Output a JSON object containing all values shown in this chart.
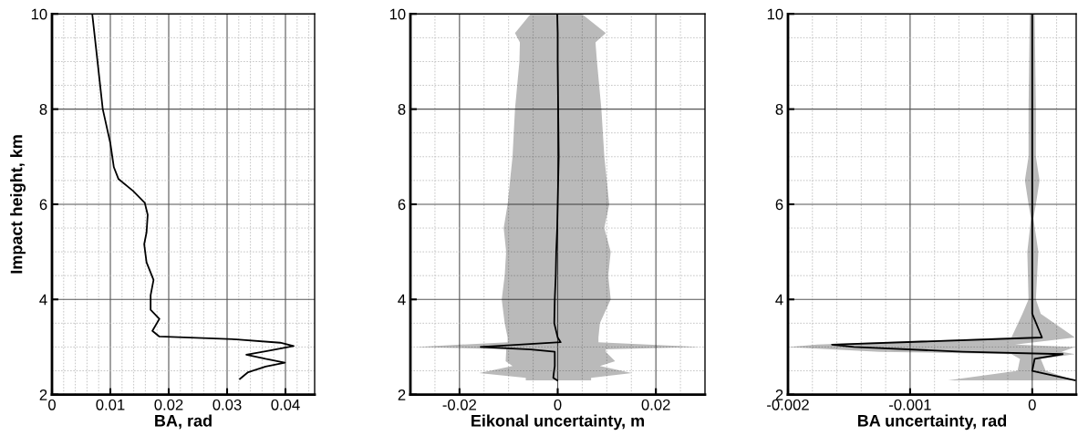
{
  "chart_data": [
    {
      "type": "line",
      "orientation": "horizontal",
      "xlabel": "BA, rad",
      "ylabel": "Impact height, km",
      "grid": true,
      "xlim": [
        0,
        0.045
      ],
      "ylim": [
        2,
        10
      ],
      "xticks": [
        0,
        {
          "value": 0.002,
          "label": null
        },
        {
          "value": 0.004,
          "label": null
        },
        {
          "value": 0.006,
          "label": null
        },
        {
          "value": 0.008,
          "label": null
        },
        0.01,
        {
          "value": 0.012,
          "label": null
        },
        {
          "value": 0.014,
          "label": null
        },
        {
          "value": 0.016,
          "label": null
        },
        {
          "value": 0.018,
          "label": null
        },
        0.02,
        {
          "value": 0.022,
          "label": null
        },
        {
          "value": 0.024,
          "label": null
        },
        {
          "value": 0.026,
          "label": null
        },
        {
          "value": 0.028,
          "label": null
        },
        0.03,
        {
          "value": 0.032,
          "label": null
        },
        {
          "value": 0.034,
          "label": null
        },
        {
          "value": 0.036,
          "label": null
        },
        {
          "value": 0.038,
          "label": null
        },
        0.04,
        {
          "value": 0.042,
          "label": null
        },
        {
          "value": 0.044,
          "label": null
        }
      ],
      "yticks": [
        2,
        {
          "value": 2.5,
          "label": null
        },
        {
          "value": 3,
          "label": null
        },
        {
          "value": 3.5,
          "label": null
        },
        4,
        {
          "value": 4.5,
          "label": null
        },
        {
          "value": 5,
          "label": null
        },
        {
          "value": 5.5,
          "label": null
        },
        6,
        {
          "value": 6.5,
          "label": null
        },
        {
          "value": 7,
          "label": null
        },
        {
          "value": 7.5,
          "label": null
        },
        8,
        {
          "value": 8.5,
          "label": null
        },
        {
          "value": 9,
          "label": null
        },
        {
          "value": 9.5,
          "label": null
        },
        10
      ],
      "series": [
        {
          "color": "#000000",
          "x": [
            10,
            9,
            8,
            7.28,
            6.78,
            6.53,
            6.28,
            6.03,
            5.78,
            5.41,
            5.16,
            4.78,
            4.41,
            4.09,
            3.78,
            3.59,
            3.34,
            3.22,
            3.16,
            3.09,
            3.02,
            2.91,
            2.84,
            2.75,
            2.67,
            2.59,
            2.47,
            2.33
          ],
          "values": [
            0.0069,
            0.0078,
            0.0087,
            0.01,
            0.0106,
            0.0114,
            0.0139,
            0.0159,
            0.0164,
            0.0162,
            0.0158,
            0.0162,
            0.0174,
            0.0169,
            0.0169,
            0.0184,
            0.0172,
            0.0184,
            0.0316,
            0.0391,
            0.0414,
            0.0366,
            0.0333,
            0.0366,
            0.0399,
            0.0366,
            0.0336,
            0.0322
          ]
        }
      ]
    },
    {
      "type": "line",
      "orientation": "horizontal",
      "xlabel": "Eikonal uncertainty, m",
      "grid": true,
      "xlim": [
        -0.03,
        0.03
      ],
      "ylim": [
        2,
        10
      ],
      "xticks": [
        {
          "value": -0.025,
          "label": null
        },
        -0.02,
        {
          "value": -0.015,
          "label": null
        },
        {
          "value": -0.01,
          "label": null
        },
        {
          "value": -0.005,
          "label": null
        },
        0,
        {
          "value": 0.005,
          "label": null
        },
        {
          "value": 0.01,
          "label": null
        },
        {
          "value": 0.015,
          "label": null
        },
        0.02,
        {
          "value": 0.025,
          "label": null
        }
      ],
      "yticks": [
        2,
        {
          "value": 2.5,
          "label": null
        },
        {
          "value": 3,
          "label": null
        },
        {
          "value": 3.5,
          "label": null
        },
        4,
        {
          "value": 4.5,
          "label": null
        },
        {
          "value": 5,
          "label": null
        },
        {
          "value": 5.5,
          "label": null
        },
        6,
        {
          "value": 6.5,
          "label": null
        },
        {
          "value": 7,
          "label": null
        },
        {
          "value": 7.5,
          "label": null
        },
        8,
        {
          "value": 8.5,
          "label": null
        },
        {
          "value": 9,
          "label": null
        },
        {
          "value": 9.5,
          "label": null
        },
        10
      ],
      "series": [
        {
          "color": "#000000",
          "x": [
            10,
            9.6,
            9.4,
            9,
            8,
            7,
            6,
            5.5,
            5,
            4.5,
            4,
            3.5,
            3.2,
            3.1,
            3.0,
            2.95,
            2.9,
            2.7,
            2.6,
            2.45,
            2.35,
            2.3
          ],
          "values": [
            -0.0001,
            0,
            0,
            0,
            0.0001,
            0.0002,
            0,
            -0.0001,
            -0.0003,
            -0.0004,
            -0.0006,
            -0.0007,
            0,
            0.0006,
            -0.0157,
            -0.0055,
            -0.0006,
            -0.0006,
            -0.0006,
            -0.0008,
            -0.0009,
            -0.0001
          ],
          "lower": [
            -0.0055,
            -0.0087,
            -0.0077,
            -0.0078,
            -0.0087,
            -0.0092,
            -0.0102,
            -0.011,
            -0.0105,
            -0.0108,
            -0.0114,
            -0.0108,
            -0.0102,
            -0.0102,
            -0.029,
            -0.0105,
            -0.0105,
            -0.0106,
            -0.0092,
            -0.016,
            -0.0065,
            -0.0065
          ],
          "upper": [
            0.0049,
            0.0098,
            0.0077,
            0.008,
            0.0089,
            0.0095,
            0.0105,
            0.0095,
            0.0108,
            0.0103,
            0.0108,
            0.0086,
            0.0083,
            0.0083,
            0.0289,
            0.0098,
            0.0098,
            0.0117,
            0.0086,
            0.0151,
            0.0068,
            0.0068
          ]
        }
      ]
    },
    {
      "type": "line",
      "orientation": "horizontal",
      "xlabel": "BA uncertainty, rad",
      "grid": true,
      "xlim": [
        -0.002,
        0.00036
      ],
      "ylim": [
        2,
        10
      ],
      "xticks": [
        -0.002,
        {
          "value": -0.0018,
          "label": null
        },
        {
          "value": -0.0016,
          "label": null
        },
        {
          "value": -0.0014,
          "label": null
        },
        {
          "value": -0.0012,
          "label": null
        },
        -0.001,
        {
          "value": -0.0008,
          "label": null
        },
        {
          "value": -0.0006,
          "label": null
        },
        {
          "value": -0.0004,
          "label": null
        },
        {
          "value": -0.0002,
          "label": null
        },
        0,
        {
          "value": 0.0002,
          "label": null
        }
      ],
      "yticks": [
        2,
        {
          "value": 2.5,
          "label": null
        },
        {
          "value": 3,
          "label": null
        },
        {
          "value": 3.5,
          "label": null
        },
        4,
        {
          "value": 4.5,
          "label": null
        },
        {
          "value": 5,
          "label": null
        },
        {
          "value": 5.5,
          "label": null
        },
        6,
        {
          "value": 6.5,
          "label": null
        },
        {
          "value": 7,
          "label": null
        },
        {
          "value": 7.5,
          "label": null
        },
        8,
        {
          "value": 8.5,
          "label": null
        },
        {
          "value": 9,
          "label": null
        },
        {
          "value": 9.5,
          "label": null
        },
        10
      ],
      "series": [
        {
          "color": "#000000",
          "x": [
            10,
            8,
            7,
            6.5,
            6,
            5.7,
            5,
            4,
            3.7,
            3.2,
            3.05,
            3.0,
            2.9,
            2.85,
            2.75,
            2.5,
            2.3
          ],
          "values": [
            0,
            0,
            0,
            0,
            0,
            0,
            0,
            0,
            0,
            8e-05,
            -0.00164,
            -0.00146,
            -0.00057,
            0.00025,
            2e-05,
            0,
            0.00035
          ],
          "lower": [
            -2e-05,
            -3e-05,
            -3e-05,
            -6e-05,
            -3e-05,
            -1e-05,
            -4e-05,
            -3e-05,
            -8e-05,
            -0.00017,
            -0.00176,
            -0.002,
            -0.00125,
            -0.00017,
            -0.0001,
            -0.00012,
            -0.00069
          ],
          "upper": [
            2e-05,
            3e-05,
            3e-05,
            6e-05,
            3e-05,
            1e-05,
            5e-05,
            3e-05,
            7e-05,
            0.00035,
            -0.00014,
            0.00035,
            0.00024,
            0.00035,
            7e-05,
            0.00011,
            0.00035
          ]
        }
      ]
    }
  ]
}
